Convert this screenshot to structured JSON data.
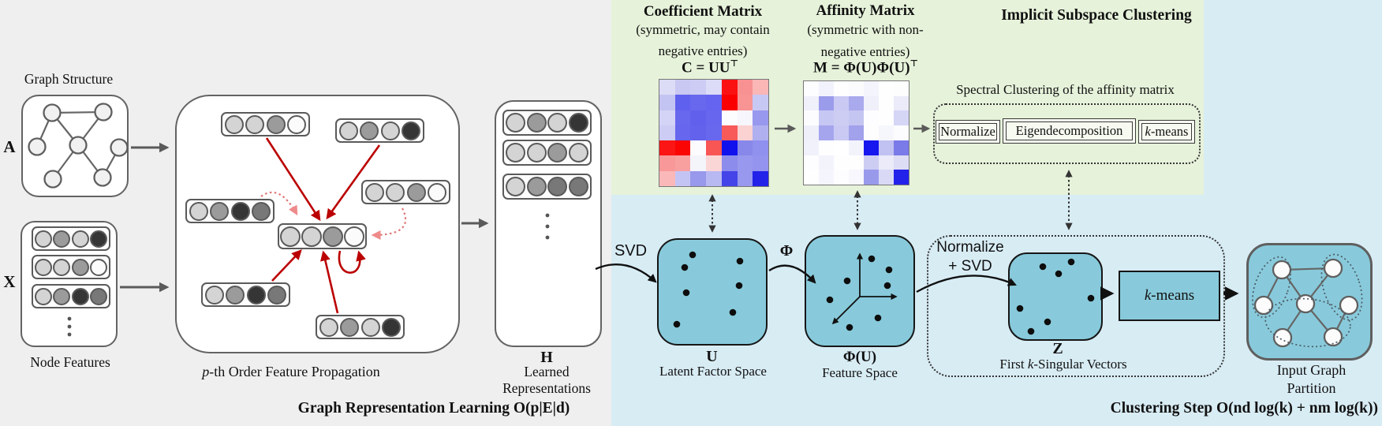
{
  "colors": {
    "gray_panel": "#efefef",
    "blue_panel": "#d8ecf4",
    "green_panel": "#e6f2da",
    "teal_box": "#88cadb",
    "red_arrow": "#bb0000",
    "dotted_red_arrow": "#e07575"
  },
  "left_section": {
    "graph_structure_label": "Graph Structure",
    "adjacency_symbol": "A",
    "features_symbol": "X",
    "node_features_label": "Node Features",
    "propagation_caption": {
      "it": "p",
      "post": "-th Order Feature Propagation"
    },
    "h_symbol": "H",
    "h_line1": "Learned",
    "h_line2": "Representations",
    "caption": "Graph Representation Learning O(p|E|d)"
  },
  "green_section": {
    "coefficient": {
      "title": "Coefficient Matrix",
      "sub1": "(symmetric, may contain",
      "sub2": "negative entries)",
      "formula_base": "C = UU",
      "formula_sup": "⊤"
    },
    "affinity": {
      "title": "Affinity Matrix",
      "sub1": "(symmetric with non-",
      "sub2": "negative entries)",
      "formula_base": "M = Φ(U)Φ(U)",
      "formula_sup": "⊤"
    },
    "implicit_title": "Implicit Subspace Clustering",
    "spectral_label": "Spectral Clustering of the affinity matrix",
    "step_normalize": "Normalize",
    "step_eigen": "Eigendecomposition",
    "step_kmeans": {
      "it": "k",
      "post": "-means"
    }
  },
  "blue_section": {
    "svd_label": "SVD",
    "u_symbol": "U",
    "u_caption": "Latent Factor Space",
    "phi_label": "Φ",
    "phiu_symbol": "Φ(U)",
    "phiu_caption": "Feature Space",
    "normalize_line1": "Normalize",
    "normalize_line2": "+ SVD",
    "z_symbol": "Z",
    "first_k": {
      "pre": "First ",
      "it": "k",
      "post": "-Singular Vectors"
    },
    "kmeans_box": {
      "it": "k",
      "post": "-means"
    },
    "partition_line1": "Input Graph",
    "partition_line2": "Partition",
    "caption": "Clustering Step O(nd log(k) + nm log(k))"
  },
  "matrices": {
    "coefficient_cells": [
      [
        "#dcdcf6",
        "#c8c8f2",
        "#ccccf4",
        "#dcdcf8",
        "#fb1111",
        "#f89292",
        "#fbb6b6"
      ],
      [
        "#c4c4f2",
        "#6060ee",
        "#6868ee",
        "#6464f0",
        "#fb0000",
        "#f89494",
        "#c8c8f4"
      ],
      [
        "#d4d4f6",
        "#6868ee",
        "#6060ec",
        "#6666ee",
        "#fcfcfe",
        "#f6f6fc",
        "#9898ee"
      ],
      [
        "#ccccf4",
        "#6666ee",
        "#6262ed",
        "#6868ef",
        "#f85a5a",
        "#fbd2d2",
        "#b0b0f0"
      ],
      [
        "#fb1515",
        "#fb0404",
        "#fcfcfe",
        "#f85555",
        "#1111ee",
        "#8888ea",
        "#9090ee"
      ],
      [
        "#f89898",
        "#f8a0a0",
        "#f4f4fb",
        "#fbd6d6",
        "#8c8cec",
        "#9898ee",
        "#9494ee"
      ],
      [
        "#fbb8b8",
        "#c4c4f4",
        "#9898ec",
        "#b8b8f2",
        "#4444e8",
        "#9898ee",
        "#2222e8"
      ]
    ],
    "affinity_cells": [
      [
        "#fdfdff",
        "#f2f2fc",
        "#fefeff",
        "#fbfbfe",
        "#f4f4fd",
        "#fefeff",
        "#fdfdfe"
      ],
      [
        "#f0f0fb",
        "#9b9bec",
        "#c9c9f4",
        "#a9a9ee",
        "#f0f0fb",
        "#fefeff",
        "#ebebf9"
      ],
      [
        "#fcfcfe",
        "#c7c7f3",
        "#cdcdf4",
        "#c5c5f2",
        "#fdfdff",
        "#fefeff",
        "#d5d5f6"
      ],
      [
        "#efeffa",
        "#a5a5ee",
        "#c9c9f4",
        "#a1a1ec",
        "#fdfdfe",
        "#f6f6fd",
        "#fcfcfe"
      ],
      [
        "#f1f1fb",
        "#fefeff",
        "#ffffff",
        "#f3f3fc",
        "#1616ee",
        "#c1c1f2",
        "#7a7ae8"
      ],
      [
        "#fdfdff",
        "#f3f3fc",
        "#fefeff",
        "#fefeff",
        "#cdcdf4",
        "#ebebf9",
        "#ddddf6"
      ],
      [
        "#fefeff",
        "#f5f5fd",
        "#fdfdff",
        "#f7f7fd",
        "#9999ec",
        "#d9d9f6",
        "#2222ea"
      ]
    ]
  },
  "features": {
    "palette": {
      "l": "#d4d4d4",
      "m": "#9b9b9b",
      "md": "#787878",
      "d": "#353535",
      "w": "#fbfbfb"
    },
    "x_rows": [
      [
        "l",
        "m",
        "l",
        "d"
      ],
      [
        "l",
        "l",
        "m",
        "w"
      ],
      [
        "l",
        "m",
        "d",
        "md"
      ]
    ],
    "prop_rows": [
      [
        "l",
        "l",
        "m",
        "w"
      ],
      [
        "l",
        "m",
        "l",
        "d"
      ],
      [
        "l",
        "l",
        "m",
        "w"
      ],
      [
        "l",
        "m",
        "d",
        "md"
      ],
      [
        "l",
        "l",
        "m",
        "w"
      ],
      [
        "l",
        "m",
        "d",
        "md"
      ],
      [
        "l",
        "m",
        "l",
        "d"
      ]
    ],
    "h_rows": [
      [
        "l",
        "m",
        "l",
        "d"
      ],
      [
        "l",
        "l",
        "m",
        "l"
      ],
      [
        "l",
        "m",
        "md",
        "md"
      ]
    ]
  },
  "graph": {
    "nodes": [
      "TL",
      "TR",
      "L",
      "C",
      "R",
      "BL",
      "BR"
    ],
    "edges": [
      [
        "TL",
        "TR"
      ],
      [
        "TL",
        "L"
      ],
      [
        "TL",
        "C"
      ],
      [
        "TR",
        "C"
      ],
      [
        "C",
        "BL"
      ],
      [
        "C",
        "BR"
      ],
      [
        "BR",
        "R"
      ]
    ]
  }
}
